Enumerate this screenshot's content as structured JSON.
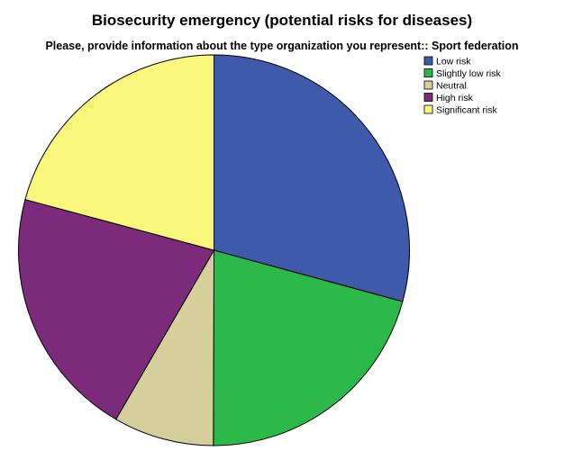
{
  "chart_data": {
    "type": "pie",
    "title": "Biosecurity emergency (potential risks for diseases)",
    "subtitle": "Please, provide information about the type organization you represent:: Sport federation",
    "categories": [
      "Low risk",
      "Slightly low risk",
      "Neutral",
      "High risk",
      "Significant risk"
    ],
    "values": [
      29.2,
      20.8,
      8.3,
      20.8,
      20.8
    ],
    "colors": [
      "#3f5aab",
      "#2db84a",
      "#d4cf9b",
      "#7b2a7c",
      "#fbf77d"
    ],
    "start_angle_deg": 0,
    "direction": "clockwise",
    "legend_position": "top-right"
  }
}
